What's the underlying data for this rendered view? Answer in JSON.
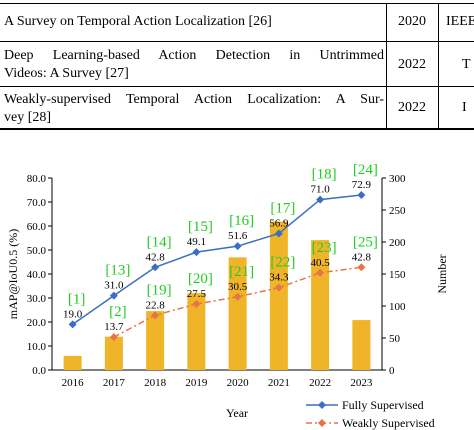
{
  "table": {
    "rows": [
      {
        "title_lines": [
          "A Survey on Temporal Action Localization [26]"
        ],
        "year": "2020",
        "venue": "IEEE"
      },
      {
        "title_lines": [
          "Deep Learning-based Action Detection in Untrimmed",
          "Videos: A Survey [27]"
        ],
        "year": "2022",
        "venue": "T"
      },
      {
        "title_lines": [
          "Weakly-supervised Temporal Action Localization: A Sur-",
          "vey [28]"
        ],
        "year": "2022",
        "venue": "I"
      }
    ]
  },
  "chart_data": {
    "type": "bar+line",
    "categories": [
      "2016",
      "2017",
      "2018",
      "2019",
      "2020",
      "2021",
      "2022",
      "2023"
    ],
    "xlabel": "Year",
    "ylabel_left": "mAP@IoU0.5 (%)",
    "ylabel_right": "Number",
    "ylim_left": [
      0,
      80
    ],
    "ylim_right": [
      0,
      300
    ],
    "yticks_left": [
      "0.0",
      "10.0",
      "20.0",
      "30.0",
      "40.0",
      "50.0",
      "60.0",
      "70.0",
      "80.0"
    ],
    "yticks_right": [
      "0",
      "50",
      "100",
      "150",
      "200",
      "250",
      "300"
    ],
    "bars": {
      "axis": "right",
      "color": "#f0b429",
      "values": [
        22,
        52,
        92,
        120,
        176,
        232,
        203,
        78
      ]
    },
    "series": [
      {
        "name": "Fully Supervised",
        "axis": "left",
        "color": "#3a6fc4",
        "marker": "diamond",
        "style": "solid",
        "values": [
          19.0,
          31.0,
          42.8,
          49.1,
          51.6,
          56.9,
          71.0,
          72.9
        ],
        "labels": [
          "19.0",
          "31.0",
          "42.8",
          "49.1",
          "51.6",
          "56.9",
          "71.0",
          "72.9"
        ],
        "refs": [
          "[1]",
          "[13]",
          "[14]",
          "[15]",
          "[16]",
          "[17]",
          "[18]",
          "[24]"
        ]
      },
      {
        "name": "Weakly Supervised",
        "axis": "left",
        "color": "#e8734a",
        "marker": "diamond",
        "style": "dashdot",
        "values": [
          null,
          13.7,
          22.8,
          27.5,
          30.5,
          34.3,
          40.5,
          42.8
        ],
        "labels": [
          null,
          "13.7",
          "22.8",
          "27.5",
          "30.5",
          "34.3",
          "40.5",
          "42.8"
        ],
        "refs": [
          null,
          "[2]",
          "[19]",
          "[20]",
          "[21]",
          "[22]",
          "[23]",
          "[25]"
        ]
      }
    ],
    "ref_color": "#22cc22",
    "legend_position": "bottom-right"
  }
}
